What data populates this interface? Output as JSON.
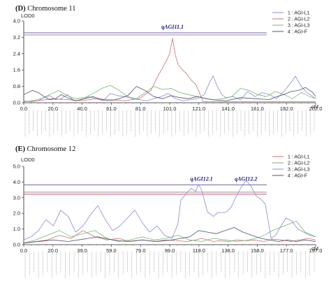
{
  "chart_data": [
    {
      "type": "line",
      "title": "(D) Chromosome 11",
      "title_prefix": "(D)",
      "title_rest": "Chromosome 11",
      "ylabel": "LOD0",
      "xlabel": "cM",
      "ylim": [
        0,
        4.0
      ],
      "xlim": [
        0,
        202
      ],
      "yticks": [
        "0.0",
        "0.8",
        "1.6",
        "2.4",
        "3.2",
        "4.0"
      ],
      "xticks": [
        "0.0",
        "20.0",
        "40.0",
        "61.0",
        "81.0",
        "101.0",
        "121.0",
        "141.0",
        "161.0",
        "182.0",
        "202.0"
      ],
      "thresholds": [
        {
          "value": 3.32,
          "color": "#9b6f9b"
        },
        {
          "value": 3.42,
          "color": "#5a5aa0"
        }
      ],
      "qtl_labels": [
        {
          "text": "qAGI11.1",
          "x": 103
        }
      ],
      "legend": [
        "1 : AGI-L1",
        "2 : AGI-L2",
        "3 : AGI-L3",
        "4 : AGI-F"
      ],
      "legend_position": "top-right",
      "marker_count": 72,
      "series": [
        {
          "name": "1 : AGI-L1",
          "color": "#8a8ad0",
          "x": [
            0,
            5,
            10,
            14,
            18,
            22,
            26,
            30,
            35,
            40,
            45,
            50,
            55,
            60,
            65,
            70,
            75,
            80,
            85,
            90,
            95,
            100,
            105,
            110,
            115,
            120,
            125,
            128,
            131,
            134,
            137,
            140,
            145,
            150,
            155,
            160,
            165,
            170,
            175,
            180,
            184,
            188,
            192,
            196,
            200,
            202
          ],
          "y": [
            0.1,
            0.05,
            0.1,
            0.25,
            0.35,
            0.15,
            0.2,
            0.4,
            0.1,
            0.15,
            0.3,
            0.2,
            0.1,
            0.45,
            0.35,
            0.3,
            0.2,
            0.15,
            0.1,
            0.2,
            0.3,
            0.45,
            0.2,
            0.1,
            0.15,
            0.2,
            0.4,
            0.9,
            1.32,
            0.8,
            0.4,
            0.25,
            0.3,
            0.15,
            0.55,
            0.3,
            0.5,
            0.4,
            0.2,
            0.55,
            0.9,
            1.3,
            0.8,
            0.5,
            0.3,
            0.2
          ]
        },
        {
          "name": "2 : AGI-L2",
          "color": "#c87070",
          "x": [
            0,
            10,
            20,
            30,
            40,
            50,
            60,
            70,
            80,
            88,
            92,
            96,
            99,
            101,
            103,
            105,
            107,
            110,
            113,
            116,
            119,
            121,
            124,
            130,
            140,
            150,
            160,
            170,
            180,
            190,
            202
          ],
          "y": [
            0.05,
            0.1,
            0.2,
            0.15,
            0.1,
            0.2,
            0.15,
            0.1,
            0.2,
            0.6,
            1.2,
            1.7,
            2.1,
            2.4,
            3.15,
            2.3,
            1.85,
            1.6,
            1.4,
            1.1,
            0.9,
            0.6,
            0.05,
            0.05,
            0.05,
            0.05,
            0.05,
            0.05,
            0.05,
            0.05,
            0.05
          ]
        },
        {
          "name": "3 : AGI-L3",
          "color": "#70b870",
          "x": [
            0,
            6,
            12,
            18,
            24,
            30,
            36,
            42,
            48,
            54,
            60,
            66,
            72,
            78,
            84,
            90,
            96,
            102,
            108,
            114,
            120,
            126,
            132,
            138,
            144,
            150,
            156,
            162,
            168,
            174,
            180,
            186,
            192,
            198,
            202
          ],
          "y": [
            0.05,
            0.1,
            0.2,
            0.4,
            0.6,
            0.35,
            0.2,
            0.25,
            0.45,
            0.7,
            0.85,
            0.6,
            0.3,
            0.2,
            0.5,
            0.8,
            0.65,
            0.7,
            0.5,
            0.4,
            0.3,
            0.2,
            0.15,
            0.2,
            0.3,
            0.7,
            0.6,
            0.4,
            0.3,
            0.55,
            0.4,
            0.2,
            0.5,
            0.3,
            0.2
          ]
        },
        {
          "name": "4 : AGI-F",
          "color": "#505070",
          "x": [
            0,
            6,
            10,
            14,
            18,
            22,
            26,
            30,
            36,
            42,
            48,
            54,
            60,
            66,
            72,
            78,
            84,
            90,
            96,
            102,
            108,
            114,
            120,
            130,
            140,
            150,
            160,
            170,
            175,
            180,
            185,
            190,
            195,
            200,
            202
          ],
          "y": [
            0.4,
            0.6,
            0.5,
            0.3,
            0.15,
            0.2,
            0.4,
            0.25,
            0.1,
            0.2,
            0.3,
            0.15,
            0.1,
            0.2,
            0.35,
            0.8,
            0.6,
            0.3,
            0.2,
            0.35,
            0.25,
            0.2,
            0.3,
            0.15,
            0.1,
            0.25,
            0.2,
            0.15,
            0.3,
            0.4,
            0.55,
            0.6,
            0.75,
            0.5,
            0.3
          ]
        }
      ]
    },
    {
      "type": "line",
      "title": "(E) Chromosome 12",
      "title_prefix": "(E)",
      "title_rest": "Chromosome 12",
      "ylabel": "LOD0",
      "xlabel": "cM",
      "ylim": [
        0,
        5.0
      ],
      "xlim": [
        0,
        197
      ],
      "yticks": [
        "0.0",
        "1.0",
        "2.0",
        "3.0",
        "4.0",
        "5.0"
      ],
      "xticks": [
        "0.0",
        "20.0",
        "39.0",
        "59.0",
        "79.0",
        "99.0",
        "118.0",
        "138.0",
        "158.0",
        "177.0",
        "197.0"
      ],
      "thresholds": [
        {
          "value": 3.22,
          "color": "#c06060"
        },
        {
          "value": 3.35,
          "color": "#9b6f9b"
        },
        {
          "value": 3.82,
          "color": "#5a5aa0"
        }
      ],
      "qtl_labels": [
        {
          "text": "qAGI12.1",
          "x": 120
        },
        {
          "text": "qAGI12.2",
          "x": 150
        }
      ],
      "legend": [
        "1 : AGI-L1",
        "2 : AGI-L2",
        "3 : AGI-L3",
        "4 : AGI-F"
      ],
      "legend_position": "top-right",
      "marker_count": 66,
      "series": [
        {
          "name": "1 : AGI-L1",
          "color": "#c87070",
          "x": [
            0,
            8,
            16,
            24,
            32,
            40,
            48,
            56,
            64,
            72,
            80,
            88,
            96,
            104,
            110,
            116,
            120,
            124,
            128,
            132,
            138,
            144,
            150,
            156,
            162,
            168,
            174,
            180,
            186,
            192,
            197
          ],
          "y": [
            0.1,
            0.2,
            0.3,
            0.6,
            0.4,
            0.9,
            0.5,
            0.3,
            0.4,
            0.2,
            0.3,
            0.2,
            0.3,
            0.25,
            0.2,
            0.3,
            0.4,
            0.3,
            0.2,
            0.25,
            0.2,
            0.3,
            0.25,
            0.3,
            0.2,
            0.35,
            0.3,
            0.2,
            0.3,
            0.4,
            0.3
          ]
        },
        {
          "name": "2 : AGI-L2",
          "color": "#70b870",
          "x": [
            0,
            8,
            16,
            24,
            32,
            40,
            48,
            56,
            64,
            72,
            80,
            88,
            96,
            104,
            112,
            120,
            128,
            136,
            144,
            152,
            160,
            168,
            176,
            184,
            190,
            197
          ],
          "y": [
            0.1,
            0.3,
            0.6,
            0.9,
            0.5,
            0.7,
            0.9,
            0.4,
            0.2,
            0.3,
            0.5,
            0.3,
            0.4,
            0.6,
            0.3,
            0.2,
            0.4,
            0.3,
            0.2,
            0.3,
            0.5,
            0.9,
            1.2,
            1.5,
            0.8,
            0.5
          ]
        },
        {
          "name": "3 : AGI-L3",
          "color": "#8a8ad0",
          "x": [
            0,
            5,
            10,
            15,
            20,
            25,
            30,
            35,
            40,
            45,
            50,
            55,
            60,
            65,
            70,
            75,
            80,
            85,
            90,
            95,
            100,
            104,
            106,
            110,
            113,
            116,
            118,
            120,
            124,
            128,
            131,
            134,
            137,
            140,
            143,
            147,
            150,
            153,
            157,
            160,
            163,
            167,
            170,
            173,
            177,
            181,
            185,
            189,
            193,
            197
          ],
          "y": [
            0.3,
            0.5,
            0.9,
            1.6,
            1.2,
            2.2,
            1.8,
            0.8,
            1.2,
            1.9,
            2.5,
            1.6,
            0.9,
            1.2,
            1.7,
            2.2,
            1.4,
            0.8,
            1.2,
            0.6,
            0.4,
            1.3,
            2.85,
            3.3,
            3.6,
            3.4,
            3.85,
            3.5,
            2.1,
            1.8,
            2.05,
            2.05,
            2.1,
            2.4,
            3.0,
            3.7,
            4.1,
            3.8,
            3.1,
            2.9,
            2.6,
            0.4,
            0.6,
            1.1,
            1.7,
            1.5,
            1.0,
            0.8,
            0.6,
            0.5
          ]
        },
        {
          "name": "4 : AGI-F",
          "color": "#505070",
          "x": [
            0,
            10,
            20,
            30,
            40,
            50,
            60,
            70,
            80,
            90,
            100,
            106,
            112,
            118,
            124,
            130,
            136,
            142,
            148,
            154,
            160,
            166,
            172,
            178,
            184,
            190,
            197
          ],
          "y": [
            0.1,
            0.2,
            0.3,
            0.2,
            0.35,
            0.5,
            0.3,
            0.2,
            0.3,
            0.2,
            0.3,
            0.4,
            0.5,
            0.9,
            0.8,
            0.7,
            0.9,
            1.1,
            0.8,
            0.6,
            0.4,
            0.3,
            0.2,
            0.3,
            0.2,
            0.3,
            0.2
          ]
        }
      ]
    }
  ]
}
